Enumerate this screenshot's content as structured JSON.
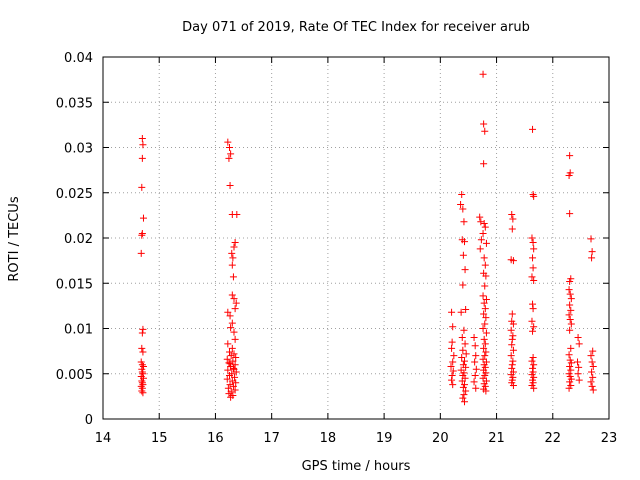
{
  "chart_data": {
    "type": "scatter",
    "title": "Day 071 of 2019, Rate Of TEC Index for receiver arub",
    "xlabel": "GPS time / hours",
    "ylabel": "ROTI / TECUs",
    "xlim": [
      14,
      23
    ],
    "ylim": [
      0,
      0.04
    ],
    "xticks": [
      "14",
      "15",
      "16",
      "17",
      "18",
      "19",
      "20",
      "21",
      "22",
      "23"
    ],
    "yticks": [
      "0",
      "0.005",
      "0.01",
      "0.015",
      "0.02",
      "0.025",
      "0.03",
      "0.035",
      "0.04"
    ],
    "grid": true,
    "marker": "+",
    "marker_color": "#ff0000",
    "series": [
      {
        "name": "ROTI",
        "points": [
          [
            14.7,
            0.031
          ],
          [
            14.71,
            0.0303
          ],
          [
            14.7,
            0.0288
          ],
          [
            14.69,
            0.0256
          ],
          [
            14.72,
            0.0222
          ],
          [
            14.7,
            0.0205
          ],
          [
            14.69,
            0.0203
          ],
          [
            14.68,
            0.0183
          ],
          [
            14.71,
            0.0099
          ],
          [
            14.7,
            0.0095
          ],
          [
            14.69,
            0.0078
          ],
          [
            14.71,
            0.0074
          ],
          [
            14.68,
            0.0063
          ],
          [
            14.7,
            0.006
          ],
          [
            14.72,
            0.0058
          ],
          [
            14.69,
            0.0055
          ],
          [
            14.7,
            0.0052
          ],
          [
            14.71,
            0.005
          ],
          [
            14.68,
            0.0047
          ],
          [
            14.72,
            0.0045
          ],
          [
            14.69,
            0.0042
          ],
          [
            14.7,
            0.004
          ],
          [
            14.71,
            0.0038
          ],
          [
            14.68,
            0.0036
          ],
          [
            14.7,
            0.0034
          ],
          [
            14.69,
            0.0031
          ],
          [
            14.71,
            0.0029
          ],
          [
            16.22,
            0.0306
          ],
          [
            16.25,
            0.03
          ],
          [
            16.27,
            0.0293
          ],
          [
            16.24,
            0.0288
          ],
          [
            16.26,
            0.0258
          ],
          [
            16.3,
            0.0226
          ],
          [
            16.38,
            0.0226
          ],
          [
            16.35,
            0.0195
          ],
          [
            16.33,
            0.019
          ],
          [
            16.29,
            0.0183
          ],
          [
            16.31,
            0.0178
          ],
          [
            16.3,
            0.017
          ],
          [
            16.32,
            0.0157
          ],
          [
            16.3,
            0.0137
          ],
          [
            16.33,
            0.0133
          ],
          [
            16.37,
            0.0128
          ],
          [
            16.35,
            0.0122
          ],
          [
            16.22,
            0.0118
          ],
          [
            16.26,
            0.0114
          ],
          [
            16.3,
            0.0106
          ],
          [
            16.27,
            0.0101
          ],
          [
            16.33,
            0.0096
          ],
          [
            16.35,
            0.0088
          ],
          [
            16.22,
            0.0083
          ],
          [
            16.3,
            0.0078
          ],
          [
            16.25,
            0.0074
          ],
          [
            16.33,
            0.0072
          ],
          [
            16.28,
            0.007
          ],
          [
            16.36,
            0.0068
          ],
          [
            16.21,
            0.0066
          ],
          [
            16.31,
            0.0064
          ],
          [
            16.24,
            0.0062
          ],
          [
            16.35,
            0.006
          ],
          [
            16.27,
            0.0058
          ],
          [
            16.32,
            0.0056
          ],
          [
            16.22,
            0.0054
          ],
          [
            16.37,
            0.0052
          ],
          [
            16.29,
            0.005
          ],
          [
            16.25,
            0.0048
          ],
          [
            16.34,
            0.0046
          ],
          [
            16.21,
            0.0044
          ],
          [
            16.3,
            0.0042
          ],
          [
            16.36,
            0.004
          ],
          [
            16.26,
            0.0038
          ],
          [
            16.32,
            0.0036
          ],
          [
            16.23,
            0.0034
          ],
          [
            16.35,
            0.0032
          ],
          [
            16.28,
            0.003
          ],
          [
            16.24,
            0.0028
          ],
          [
            16.31,
            0.0026
          ],
          [
            16.27,
            0.0024
          ],
          [
            16.33,
            0.0055
          ],
          [
            16.26,
            0.0061
          ],
          [
            20.2,
            0.0118
          ],
          [
            20.22,
            0.0102
          ],
          [
            20.21,
            0.0085
          ],
          [
            20.2,
            0.0078
          ],
          [
            20.24,
            0.007
          ],
          [
            20.22,
            0.0063
          ],
          [
            20.19,
            0.0058
          ],
          [
            20.23,
            0.0053
          ],
          [
            20.21,
            0.0048
          ],
          [
            20.2,
            0.0043
          ],
          [
            20.22,
            0.0038
          ],
          [
            20.38,
            0.0248
          ],
          [
            20.36,
            0.0237
          ],
          [
            20.4,
            0.0232
          ],
          [
            20.42,
            0.0218
          ],
          [
            20.39,
            0.0198
          ],
          [
            20.43,
            0.0196
          ],
          [
            20.41,
            0.0181
          ],
          [
            20.44,
            0.0165
          ],
          [
            20.4,
            0.0148
          ],
          [
            20.45,
            0.0121
          ],
          [
            20.37,
            0.0118
          ],
          [
            20.42,
            0.0098
          ],
          [
            20.39,
            0.009
          ],
          [
            20.44,
            0.0083
          ],
          [
            20.4,
            0.0076
          ],
          [
            20.46,
            0.0072
          ],
          [
            20.38,
            0.0068
          ],
          [
            20.43,
            0.0064
          ],
          [
            20.41,
            0.006
          ],
          [
            20.45,
            0.0057
          ],
          [
            20.37,
            0.0054
          ],
          [
            20.42,
            0.0051
          ],
          [
            20.4,
            0.0048
          ],
          [
            20.44,
            0.0045
          ],
          [
            20.39,
            0.0042
          ],
          [
            20.43,
            0.0038
          ],
          [
            20.41,
            0.0035
          ],
          [
            20.45,
            0.0031
          ],
          [
            20.42,
            0.0027
          ],
          [
            20.4,
            0.0023
          ],
          [
            20.43,
            0.0019
          ],
          [
            20.6,
            0.009
          ],
          [
            20.62,
            0.0081
          ],
          [
            20.63,
            0.007
          ],
          [
            20.61,
            0.0063
          ],
          [
            20.64,
            0.0055
          ],
          [
            20.62,
            0.0048
          ],
          [
            20.6,
            0.0041
          ],
          [
            20.63,
            0.0034
          ],
          [
            20.7,
            0.0223
          ],
          [
            20.72,
            0.0218
          ],
          [
            20.73,
            0.0198
          ],
          [
            20.71,
            0.0188
          ],
          [
            20.76,
            0.0381
          ],
          [
            20.77,
            0.0326
          ],
          [
            20.79,
            0.0318
          ],
          [
            20.77,
            0.0282
          ],
          [
            20.78,
            0.0216
          ],
          [
            20.8,
            0.0212
          ],
          [
            20.76,
            0.0205
          ],
          [
            20.82,
            0.0194
          ],
          [
            20.78,
            0.0178
          ],
          [
            20.8,
            0.017
          ],
          [
            20.77,
            0.0161
          ],
          [
            20.81,
            0.0158
          ],
          [
            20.79,
            0.0147
          ],
          [
            20.76,
            0.0136
          ],
          [
            20.82,
            0.0132
          ],
          [
            20.78,
            0.0128
          ],
          [
            20.8,
            0.0122
          ],
          [
            20.77,
            0.0116
          ],
          [
            20.81,
            0.0112
          ],
          [
            20.79,
            0.0105
          ],
          [
            20.76,
            0.01
          ],
          [
            20.82,
            0.0095
          ],
          [
            20.78,
            0.0088
          ],
          [
            20.8,
            0.0083
          ],
          [
            20.77,
            0.0078
          ],
          [
            20.81,
            0.0074
          ],
          [
            20.79,
            0.007
          ],
          [
            20.76,
            0.0066
          ],
          [
            20.82,
            0.0063
          ],
          [
            20.78,
            0.006
          ],
          [
            20.8,
            0.0057
          ],
          [
            20.77,
            0.0054
          ],
          [
            20.81,
            0.0051
          ],
          [
            20.79,
            0.0048
          ],
          [
            20.76,
            0.0045
          ],
          [
            20.82,
            0.0042
          ],
          [
            20.78,
            0.0039
          ],
          [
            20.8,
            0.0036
          ],
          [
            20.77,
            0.0033
          ],
          [
            20.81,
            0.0031
          ],
          [
            21.27,
            0.0226
          ],
          [
            21.29,
            0.0221
          ],
          [
            21.28,
            0.021
          ],
          [
            21.26,
            0.0176
          ],
          [
            21.3,
            0.0175
          ],
          [
            21.28,
            0.0116
          ],
          [
            21.27,
            0.0108
          ],
          [
            21.3,
            0.0105
          ],
          [
            21.26,
            0.0098
          ],
          [
            21.29,
            0.0092
          ],
          [
            21.28,
            0.0088
          ],
          [
            21.27,
            0.0082
          ],
          [
            21.3,
            0.0076
          ],
          [
            21.26,
            0.007
          ],
          [
            21.29,
            0.0064
          ],
          [
            21.28,
            0.006
          ],
          [
            21.27,
            0.0056
          ],
          [
            21.3,
            0.0052
          ],
          [
            21.26,
            0.0049
          ],
          [
            21.29,
            0.0046
          ],
          [
            21.28,
            0.0043
          ],
          [
            21.27,
            0.004
          ],
          [
            21.3,
            0.0037
          ],
          [
            21.64,
            0.032
          ],
          [
            21.65,
            0.0248
          ],
          [
            21.66,
            0.0246
          ],
          [
            21.63,
            0.02
          ],
          [
            21.65,
            0.0195
          ],
          [
            21.66,
            0.0188
          ],
          [
            21.64,
            0.0178
          ],
          [
            21.65,
            0.0167
          ],
          [
            21.63,
            0.0157
          ],
          [
            21.66,
            0.0153
          ],
          [
            21.64,
            0.0127
          ],
          [
            21.65,
            0.0122
          ],
          [
            21.63,
            0.0108
          ],
          [
            21.66,
            0.0102
          ],
          [
            21.64,
            0.0097
          ],
          [
            21.65,
            0.0068
          ],
          [
            21.63,
            0.0064
          ],
          [
            21.66,
            0.006
          ],
          [
            21.64,
            0.0056
          ],
          [
            21.65,
            0.0052
          ],
          [
            21.63,
            0.0049
          ],
          [
            21.66,
            0.0046
          ],
          [
            21.64,
            0.0043
          ],
          [
            21.65,
            0.004
          ],
          [
            21.63,
            0.0037
          ],
          [
            21.66,
            0.0034
          ],
          [
            22.3,
            0.0291
          ],
          [
            22.31,
            0.0272
          ],
          [
            22.29,
            0.0269
          ],
          [
            22.3,
            0.0227
          ],
          [
            22.32,
            0.0155
          ],
          [
            22.3,
            0.0152
          ],
          [
            22.29,
            0.0143
          ],
          [
            22.31,
            0.0138
          ],
          [
            22.33,
            0.0133
          ],
          [
            22.3,
            0.0126
          ],
          [
            22.32,
            0.012
          ],
          [
            22.29,
            0.0115
          ],
          [
            22.31,
            0.011
          ],
          [
            22.33,
            0.0105
          ],
          [
            22.3,
            0.0098
          ],
          [
            22.32,
            0.0078
          ],
          [
            22.29,
            0.0071
          ],
          [
            22.31,
            0.0065
          ],
          [
            22.33,
            0.0062
          ],
          [
            22.3,
            0.0058
          ],
          [
            22.32,
            0.0054
          ],
          [
            22.29,
            0.005
          ],
          [
            22.31,
            0.0047
          ],
          [
            22.33,
            0.0044
          ],
          [
            22.3,
            0.0041
          ],
          [
            22.32,
            0.0037
          ],
          [
            22.29,
            0.0034
          ],
          [
            22.45,
            0.009
          ],
          [
            22.47,
            0.0083
          ],
          [
            22.44,
            0.0063
          ],
          [
            22.46,
            0.0057
          ],
          [
            22.45,
            0.005
          ],
          [
            22.47,
            0.0043
          ],
          [
            22.68,
            0.0199
          ],
          [
            22.7,
            0.0185
          ],
          [
            22.69,
            0.0178
          ],
          [
            22.71,
            0.0075
          ],
          [
            22.68,
            0.007
          ],
          [
            22.7,
            0.0063
          ],
          [
            22.72,
            0.0058
          ],
          [
            22.69,
            0.0052
          ],
          [
            22.71,
            0.0046
          ],
          [
            22.68,
            0.0041
          ],
          [
            22.7,
            0.0036
          ],
          [
            22.72,
            0.0032
          ]
        ]
      }
    ]
  }
}
